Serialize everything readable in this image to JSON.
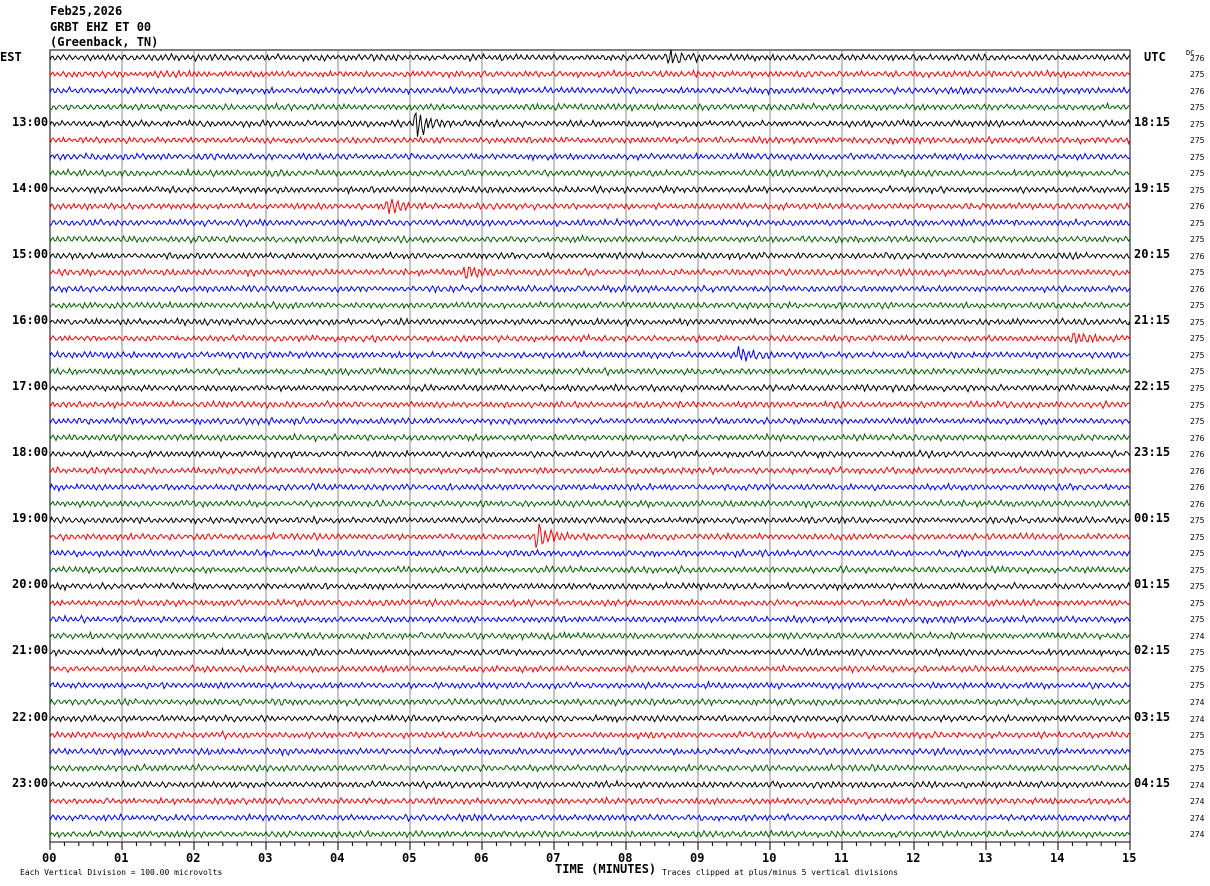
{
  "header": {
    "date": "Feb25,2026",
    "station": "GRBT EHZ ET 00",
    "location": "(Greenback, TN)",
    "left_tz": "EST",
    "right_tz": "UTC",
    "dc_label": "DC"
  },
  "footer": {
    "scale": "Each Vertical Division =  100.00 microvolts",
    "xlabel": "TIME (MINUTES)",
    "clip_note": "Traces clipped at plus/minus 5 vertical divisions"
  },
  "chart_data": {
    "type": "line",
    "xlabel": "TIME (MINUTES)",
    "xlim": [
      0,
      15
    ],
    "x_ticks": [
      "00",
      "01",
      "02",
      "03",
      "04",
      "05",
      "06",
      "07",
      "08",
      "09",
      "10",
      "11",
      "12",
      "13",
      "14",
      "15"
    ],
    "left_labels": [
      "13:00",
      "14:00",
      "15:00",
      "16:00",
      "17:00",
      "18:00",
      "19:00",
      "20:00",
      "21:00",
      "22:00",
      "23:00"
    ],
    "right_labels": [
      "18:15",
      "19:15",
      "20:15",
      "21:15",
      "22:15",
      "23:15",
      "00:15",
      "01:15",
      "02:15",
      "03:15",
      "04:15"
    ],
    "trace_count": 48,
    "trace_colors": [
      "#000000",
      "#ff0000",
      "#0000ff",
      "#006400"
    ],
    "dc_values": [
      276,
      275,
      276,
      275,
      275,
      275,
      275,
      275,
      275,
      276,
      275,
      275,
      276,
      275,
      276,
      275,
      275,
      275,
      275,
      275,
      275,
      275,
      275,
      276,
      276,
      276,
      276,
      276,
      275,
      275,
      275,
      275,
      275,
      275,
      275,
      274,
      275,
      275,
      275,
      274,
      274,
      275,
      275,
      275,
      274,
      274,
      274,
      274
    ],
    "events": [
      {
        "trace": 0,
        "minute": 8.6,
        "amp": 1.6
      },
      {
        "trace": 4,
        "minute": 5.1,
        "amp": 3
      },
      {
        "trace": 9,
        "minute": 4.7,
        "amp": 1.5
      },
      {
        "trace": 13,
        "minute": 5.8,
        "amp": 1.2
      },
      {
        "trace": 17,
        "minute": 14.2,
        "amp": 1.3
      },
      {
        "trace": 18,
        "minute": 9.6,
        "amp": 1.4
      },
      {
        "trace": 29,
        "minute": 6.8,
        "amp": 2.5
      }
    ]
  }
}
